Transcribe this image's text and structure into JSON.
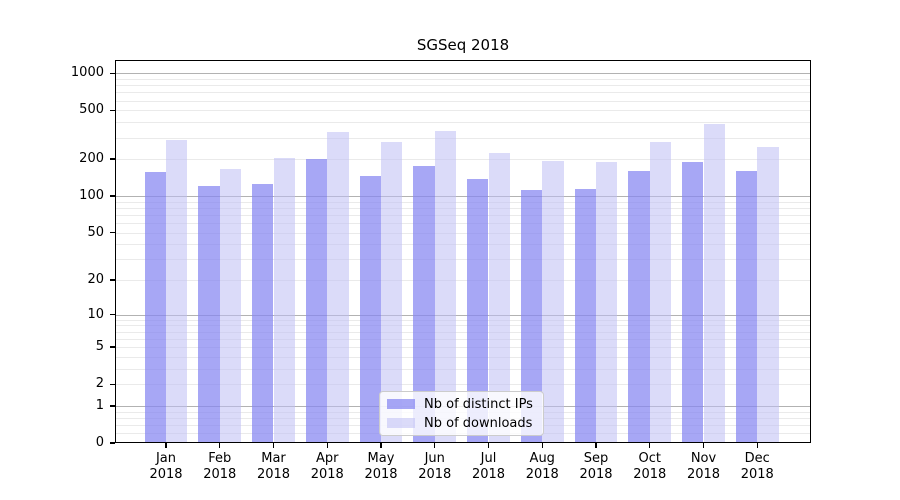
{
  "chart_data": {
    "type": "bar",
    "title": "SGSeq 2018",
    "categories": [
      "Jan",
      "Feb",
      "Mar",
      "Apr",
      "May",
      "Jun",
      "Jul",
      "Aug",
      "Sep",
      "Oct",
      "Nov",
      "Dec"
    ],
    "year": "2018",
    "series": [
      {
        "name": "Nb of distinct IPs",
        "color": "rgba(133,133,241,0.72)",
        "values": [
          158,
          121,
          125,
          200,
          146,
          176,
          138,
          112,
          113,
          160,
          189,
          160
        ]
      },
      {
        "name": "Nb of downloads",
        "color": "rgba(190,190,244,0.55)",
        "values": [
          286,
          166,
          204,
          335,
          277,
          339,
          226,
          193,
          190,
          276,
          386,
          251
        ]
      }
    ],
    "yticks": [
      0,
      1,
      2,
      5,
      10,
      20,
      50,
      100,
      200,
      500,
      1000
    ],
    "major_grid_values": [
      1,
      10,
      100,
      1000
    ],
    "scale": "log10(value+1)",
    "ylim": [
      0,
      1280
    ],
    "xlabel": "",
    "ylabel": "",
    "grid": true,
    "legend_position": "bottom-center",
    "colors": {
      "bar_distinct_ips": "rgba(133,133,241,0.72)",
      "bar_downloads": "rgba(190,190,244,0.55)",
      "major_grid": "#b2b2b2",
      "minor_grid": "#eaeaea",
      "axis": "#000000",
      "background": "#ffffff"
    }
  }
}
